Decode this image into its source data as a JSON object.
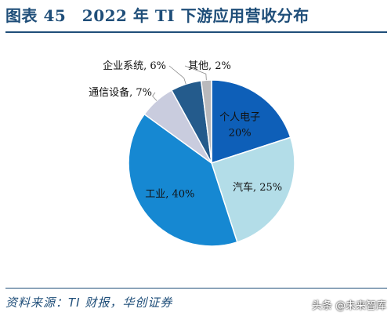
{
  "header": {
    "title": "图表 45　2022 年 TI 下游应用营收分布"
  },
  "footer": {
    "source": "资料来源：TI 财报，华创证券",
    "watermark": "头条 @未来智库"
  },
  "chart_data": {
    "type": "pie",
    "title": "",
    "slices": [
      {
        "name": "个人电子",
        "value": 20,
        "label_lines": [
          "个人电子",
          "20%"
        ],
        "color": "#0e5fb8"
      },
      {
        "name": "汽车",
        "value": 25,
        "label_lines": [
          "汽车, 25%"
        ],
        "color": "#b3dde8"
      },
      {
        "name": "工业",
        "value": 40,
        "label_lines": [
          "工业, 40%"
        ],
        "color": "#1688d2"
      },
      {
        "name": "通信设备",
        "value": 7,
        "label_lines": [
          "通信设备, 7%"
        ],
        "color": "#c9ccde"
      },
      {
        "name": "企业系统",
        "value": 6,
        "label_lines": [
          "企业系统, 6%"
        ],
        "color": "#245b8c"
      },
      {
        "name": "其他",
        "value": 2,
        "label_lines": [
          "其他, 2%"
        ],
        "color": "#b9b9bc"
      }
    ]
  }
}
